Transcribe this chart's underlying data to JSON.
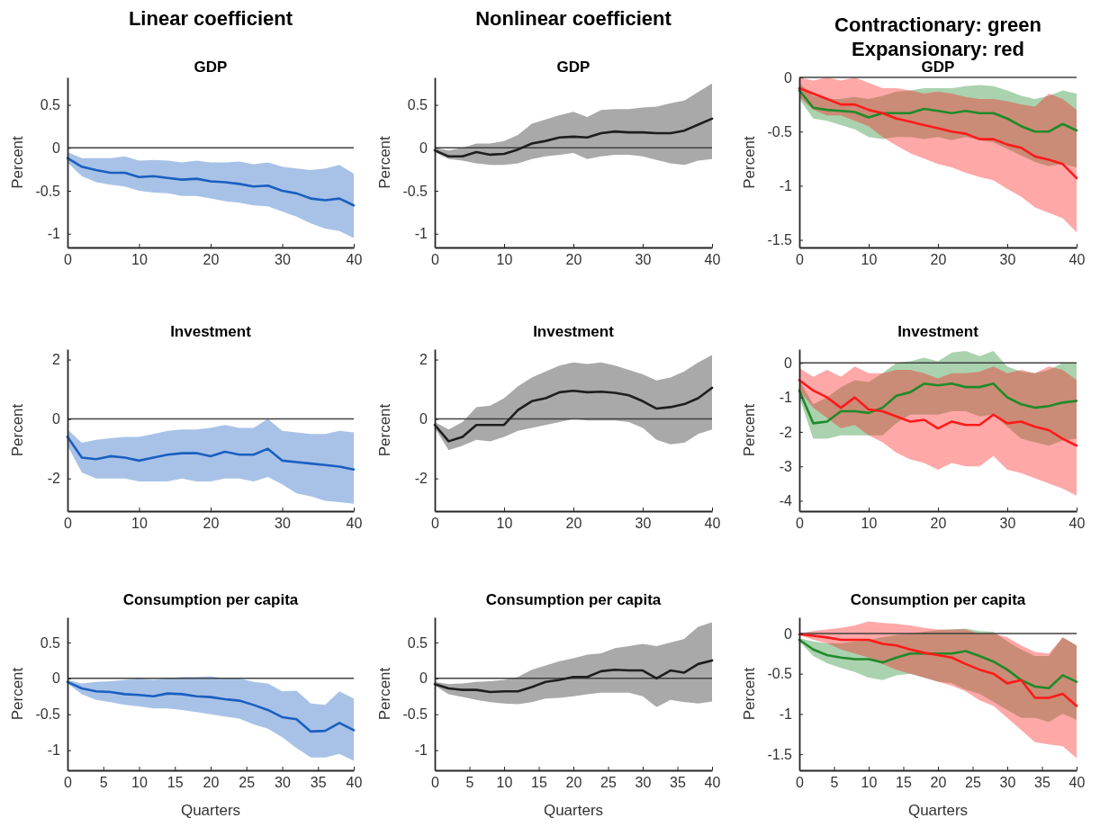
{
  "chart_data": [
    {
      "type": "line",
      "title": "Linear coefficient",
      "subtitle": "GDP",
      "ylabel": "Percent",
      "x": [
        0,
        2,
        4,
        6,
        8,
        10,
        12,
        14,
        16,
        18,
        20,
        22,
        24,
        26,
        28,
        30,
        32,
        34,
        36,
        38,
        40
      ],
      "xlim": [
        0,
        40
      ],
      "xticks": [
        0,
        10,
        20,
        30,
        40
      ],
      "ylim": [
        -1.16,
        0.82
      ],
      "yticks": [
        -1,
        -0.5,
        0,
        0.5
      ],
      "ref_lines": [
        {
          "axis": "y",
          "value": 0,
          "color": "#404040"
        }
      ],
      "series": [
        {
          "color": "#1a5fc0",
          "values": [
            -0.12,
            -0.22,
            -0.26,
            -0.29,
            -0.29,
            -0.34,
            -0.33,
            -0.35,
            -0.37,
            -0.36,
            -0.39,
            -0.4,
            -0.42,
            -0.45,
            -0.44,
            -0.5,
            -0.53,
            -0.59,
            -0.61,
            -0.59,
            -0.67
          ],
          "lower": [
            -0.17,
            -0.33,
            -0.4,
            -0.43,
            -0.45,
            -0.5,
            -0.52,
            -0.53,
            -0.56,
            -0.56,
            -0.59,
            -0.62,
            -0.64,
            -0.67,
            -0.68,
            -0.74,
            -0.8,
            -0.88,
            -0.94,
            -0.97,
            -1.05
          ],
          "upper": [
            -0.05,
            -0.12,
            -0.12,
            -0.12,
            -0.1,
            -0.15,
            -0.14,
            -0.15,
            -0.17,
            -0.15,
            -0.17,
            -0.17,
            -0.16,
            -0.19,
            -0.17,
            -0.22,
            -0.24,
            -0.26,
            -0.24,
            -0.2,
            -0.3
          ]
        }
      ]
    },
    {
      "type": "line",
      "title": "Nonlinear coefficient",
      "subtitle": "GDP",
      "ylabel": "Percent",
      "x": [
        0,
        2,
        4,
        6,
        8,
        10,
        12,
        14,
        16,
        18,
        20,
        22,
        24,
        26,
        28,
        30,
        32,
        34,
        36,
        38,
        40
      ],
      "xlim": [
        0,
        40
      ],
      "xticks": [
        0,
        10,
        20,
        30,
        40
      ],
      "ylim": [
        -1.16,
        0.82
      ],
      "yticks": [
        -1,
        -0.5,
        0,
        0.5
      ],
      "ref_lines": [
        {
          "axis": "y",
          "value": 0,
          "color": "#404040"
        }
      ],
      "series": [
        {
          "color": "#1e1e1e",
          "values": [
            -0.03,
            -0.1,
            -0.1,
            -0.05,
            -0.08,
            -0.07,
            -0.02,
            0.05,
            0.08,
            0.12,
            0.13,
            0.12,
            0.17,
            0.19,
            0.18,
            0.18,
            0.17,
            0.17,
            0.2,
            0.27,
            0.34
          ],
          "lower": [
            -0.05,
            -0.13,
            -0.15,
            -0.18,
            -0.2,
            -0.2,
            -0.18,
            -0.13,
            -0.1,
            -0.08,
            -0.06,
            -0.13,
            -0.1,
            -0.08,
            -0.08,
            -0.1,
            -0.14,
            -0.18,
            -0.2,
            -0.15,
            -0.13
          ],
          "upper": [
            0,
            -0.03,
            0,
            0.05,
            0.05,
            0.08,
            0.15,
            0.28,
            0.33,
            0.38,
            0.42,
            0.36,
            0.44,
            0.45,
            0.45,
            0.47,
            0.48,
            0.52,
            0.55,
            0.65,
            0.75
          ]
        }
      ]
    },
    {
      "type": "line",
      "title": "Contractionary: green\nExpansionary: red",
      "subtitle": "GDP",
      "ylabel": "Percent",
      "x": [
        0,
        2,
        4,
        6,
        8,
        10,
        12,
        14,
        16,
        18,
        20,
        22,
        24,
        26,
        28,
        30,
        32,
        34,
        36,
        38,
        40
      ],
      "xlim": [
        0,
        40
      ],
      "xticks": [
        0,
        10,
        20,
        30,
        40
      ],
      "ylim": [
        -1.57,
        0
      ],
      "yticks": [
        -1.5,
        -1,
        -0.5,
        0
      ],
      "ref_lines": [
        {
          "axis": "y",
          "value": 0,
          "color": "#404040"
        }
      ],
      "series": [
        {
          "color": "#1f8a2a",
          "values": [
            -0.12,
            -0.28,
            -0.3,
            -0.31,
            -0.32,
            -0.37,
            -0.33,
            -0.33,
            -0.33,
            -0.29,
            -0.31,
            -0.33,
            -0.31,
            -0.33,
            -0.33,
            -0.38,
            -0.45,
            -0.5,
            -0.5,
            -0.43,
            -0.49
          ],
          "lower": [
            -0.2,
            -0.38,
            -0.4,
            -0.44,
            -0.48,
            -0.55,
            -0.57,
            -0.55,
            -0.55,
            -0.57,
            -0.55,
            -0.58,
            -0.55,
            -0.58,
            -0.6,
            -0.66,
            -0.72,
            -0.78,
            -0.82,
            -0.8,
            -0.83
          ],
          "upper": [
            -0.05,
            -0.17,
            -0.2,
            -0.2,
            -0.18,
            -0.2,
            -0.17,
            -0.13,
            -0.12,
            -0.1,
            -0.1,
            -0.1,
            -0.08,
            -0.07,
            -0.08,
            -0.12,
            -0.17,
            -0.2,
            -0.17,
            -0.12,
            -0.15
          ]
        },
        {
          "color": "#ff1a1a",
          "values": [
            -0.1,
            -0.15,
            -0.2,
            -0.25,
            -0.25,
            -0.3,
            -0.33,
            -0.38,
            -0.41,
            -0.44,
            -0.47,
            -0.5,
            -0.52,
            -0.57,
            -0.57,
            -0.62,
            -0.65,
            -0.73,
            -0.76,
            -0.8,
            -0.93
          ],
          "lower": [
            -0.18,
            -0.3,
            -0.35,
            -0.35,
            -0.4,
            -0.45,
            -0.55,
            -0.63,
            -0.7,
            -0.75,
            -0.8,
            -0.83,
            -0.88,
            -0.92,
            -0.95,
            -1.03,
            -1.1,
            -1.2,
            -1.25,
            -1.3,
            -1.43
          ],
          "upper": [
            0,
            -0.03,
            0,
            -0.03,
            0,
            -0.05,
            -0.1,
            -0.1,
            -0.12,
            -0.15,
            -0.13,
            -0.15,
            -0.18,
            -0.2,
            -0.2,
            -0.22,
            -0.25,
            -0.27,
            -0.15,
            -0.2,
            -0.3
          ]
        }
      ]
    },
    {
      "type": "line",
      "title": "Investment",
      "ylabel": "Percent",
      "x": [
        0,
        2,
        4,
        6,
        8,
        10,
        12,
        14,
        16,
        18,
        20,
        22,
        24,
        26,
        28,
        30,
        32,
        34,
        36,
        38,
        40
      ],
      "xlim": [
        0,
        40
      ],
      "xticks": [
        0,
        10,
        20,
        30,
        40
      ],
      "ylim": [
        -3.1,
        2.35
      ],
      "yticks": [
        -2,
        0,
        2
      ],
      "ref_lines": [
        {
          "axis": "y",
          "value": 0,
          "color": "#404040"
        }
      ],
      "series": [
        {
          "color": "#1a5fc0",
          "values": [
            -0.6,
            -1.3,
            -1.35,
            -1.25,
            -1.3,
            -1.4,
            -1.3,
            -1.2,
            -1.15,
            -1.15,
            -1.25,
            -1.1,
            -1.2,
            -1.2,
            -1.0,
            -1.4,
            -1.45,
            -1.5,
            -1.55,
            -1.6,
            -1.7
          ],
          "lower": [
            -0.9,
            -1.8,
            -2,
            -2,
            -2,
            -2.1,
            -2.1,
            -2.1,
            -2,
            -2.1,
            -2.1,
            -2,
            -2,
            -2.1,
            -1.95,
            -2.2,
            -2.5,
            -2.6,
            -2.75,
            -2.8,
            -2.85
          ],
          "upper": [
            -0.35,
            -0.8,
            -0.7,
            -0.65,
            -0.6,
            -0.6,
            -0.5,
            -0.4,
            -0.35,
            -0.35,
            -0.3,
            -0.2,
            -0.3,
            -0.3,
            0,
            -0.4,
            -0.45,
            -0.5,
            -0.5,
            -0.4,
            -0.45
          ]
        }
      ]
    },
    {
      "type": "line",
      "title": "Investment",
      "ylabel": "Percent",
      "x": [
        0,
        2,
        4,
        6,
        8,
        10,
        12,
        14,
        16,
        18,
        20,
        22,
        24,
        26,
        28,
        30,
        32,
        34,
        36,
        38,
        40
      ],
      "xlim": [
        0,
        40
      ],
      "xticks": [
        0,
        10,
        20,
        30,
        40
      ],
      "ylim": [
        -3.1,
        2.35
      ],
      "yticks": [
        -2,
        0,
        2
      ],
      "ref_lines": [
        {
          "axis": "y",
          "value": 0,
          "color": "#404040"
        }
      ],
      "series": [
        {
          "color": "#1e1e1e",
          "values": [
            -0.2,
            -0.75,
            -0.6,
            -0.2,
            -0.2,
            -0.2,
            0.3,
            0.6,
            0.7,
            0.9,
            0.95,
            0.9,
            0.92,
            0.88,
            0.8,
            0.6,
            0.35,
            0.4,
            0.5,
            0.7,
            1.05
          ],
          "lower": [
            -0.3,
            -1.05,
            -0.9,
            -0.7,
            -0.75,
            -0.6,
            -0.4,
            -0.3,
            -0.2,
            -0.1,
            0,
            -0.05,
            -0.05,
            -0.05,
            -0.1,
            -0.3,
            -0.7,
            -0.85,
            -0.8,
            -0.5,
            -0.35
          ],
          "upper": [
            -0.1,
            -0.35,
            -0.1,
            0.4,
            0.45,
            0.7,
            1.1,
            1.4,
            1.6,
            1.8,
            1.9,
            1.85,
            1.9,
            1.8,
            1.65,
            1.5,
            1.3,
            1.4,
            1.6,
            1.9,
            2.15
          ]
        }
      ]
    },
    {
      "type": "line",
      "title": "Investment",
      "ylabel": "Percent",
      "x": [
        0,
        2,
        4,
        6,
        8,
        10,
        12,
        14,
        16,
        18,
        20,
        22,
        24,
        26,
        28,
        30,
        32,
        34,
        36,
        38,
        40
      ],
      "xlim": [
        0,
        40
      ],
      "xticks": [
        0,
        10,
        20,
        30,
        40
      ],
      "ylim": [
        -4.3,
        0.4
      ],
      "yticks": [
        -4,
        -3,
        -2,
        -1,
        0
      ],
      "ref_lines": [
        {
          "axis": "y",
          "value": 0,
          "color": "#404040"
        }
      ],
      "series": [
        {
          "color": "#1f8a2a",
          "values": [
            -0.8,
            -1.75,
            -1.7,
            -1.4,
            -1.4,
            -1.45,
            -1.3,
            -0.95,
            -0.85,
            -0.6,
            -0.65,
            -0.6,
            -0.7,
            -0.7,
            -0.6,
            -1.0,
            -1.2,
            -1.3,
            -1.25,
            -1.15,
            -1.1
          ],
          "lower": [
            -1.0,
            -2.2,
            -2.2,
            -2.1,
            -2.1,
            -2.1,
            -2.1,
            -1.75,
            -1.5,
            -1.5,
            -1.5,
            -1.4,
            -1.4,
            -1.55,
            -1.5,
            -1.85,
            -2.2,
            -2.3,
            -2.4,
            -2.25,
            -2.2
          ],
          "upper": [
            -0.5,
            -1.2,
            -1.0,
            -0.7,
            -0.5,
            -0.55,
            -0.3,
            0,
            0.05,
            0.15,
            0.05,
            0.3,
            0.35,
            0.2,
            0.35,
            -0.1,
            -0.25,
            -0.3,
            -0.2,
            0,
            0
          ]
        },
        {
          "color": "#ff1a1a",
          "values": [
            -0.5,
            -0.8,
            -1.0,
            -1.3,
            -1.0,
            -1.35,
            -1.4,
            -1.55,
            -1.7,
            -1.65,
            -1.9,
            -1.7,
            -1.8,
            -1.8,
            -1.5,
            -1.75,
            -1.7,
            -1.85,
            -1.95,
            -2.2,
            -2.4
          ],
          "lower": [
            -0.8,
            -1.3,
            -1.6,
            -1.9,
            -1.8,
            -2.1,
            -2.3,
            -2.6,
            -2.8,
            -2.9,
            -3.1,
            -2.9,
            -3.0,
            -3.0,
            -2.7,
            -3.1,
            -3.2,
            -3.35,
            -3.5,
            -3.65,
            -3.85
          ],
          "upper": [
            -0.15,
            -0.4,
            -0.2,
            -0.4,
            -0.1,
            -0.3,
            -0.3,
            -0.2,
            -0.2,
            -0.3,
            -0.45,
            -0.3,
            -0.3,
            -0.25,
            -0.1,
            -0.3,
            -0.2,
            -0.3,
            -0.1,
            -0.2,
            -0.5
          ]
        }
      ]
    },
    {
      "type": "line",
      "title": "Consumption per capita",
      "xlabel": "Quarters",
      "ylabel": "Percent",
      "x": [
        0,
        2,
        4,
        6,
        8,
        10,
        12,
        14,
        16,
        18,
        20,
        22,
        24,
        26,
        28,
        30,
        32,
        34,
        36,
        38,
        40
      ],
      "xlim": [
        0,
        40
      ],
      "xticks": [
        0,
        5,
        10,
        15,
        20,
        25,
        30,
        35,
        40
      ],
      "ylim": [
        -1.28,
        0.85
      ],
      "yticks": [
        -1,
        -0.5,
        0,
        0.5
      ],
      "ref_lines": [
        {
          "axis": "y",
          "value": 0,
          "color": "#404040"
        }
      ],
      "series": [
        {
          "color": "#1a5fc0",
          "values": [
            -0.05,
            -0.14,
            -0.18,
            -0.19,
            -0.22,
            -0.23,
            -0.25,
            -0.21,
            -0.22,
            -0.25,
            -0.26,
            -0.29,
            -0.31,
            -0.37,
            -0.44,
            -0.54,
            -0.57,
            -0.74,
            -0.73,
            -0.62,
            -0.72
          ],
          "lower": [
            -0.07,
            -0.22,
            -0.3,
            -0.33,
            -0.37,
            -0.39,
            -0.42,
            -0.42,
            -0.44,
            -0.47,
            -0.5,
            -0.53,
            -0.56,
            -0.64,
            -0.7,
            -0.82,
            -0.97,
            -1.1,
            -1.1,
            -1.05,
            -1.15
          ],
          "upper": [
            -0.02,
            -0.07,
            -0.05,
            -0.04,
            -0.02,
            0,
            -0.02,
            0,
            0.02,
            0.02,
            0.03,
            0,
            0,
            -0.05,
            -0.07,
            -0.18,
            -0.17,
            -0.35,
            -0.37,
            -0.18,
            -0.28
          ]
        }
      ]
    },
    {
      "type": "line",
      "title": "Consumption per capita",
      "xlabel": "Quarters",
      "ylabel": "Percent",
      "x": [
        0,
        2,
        4,
        6,
        8,
        10,
        12,
        14,
        16,
        18,
        20,
        22,
        24,
        26,
        28,
        30,
        32,
        34,
        36,
        38,
        40
      ],
      "xlim": [
        0,
        40
      ],
      "xticks": [
        0,
        5,
        10,
        15,
        20,
        25,
        30,
        35,
        40
      ],
      "ylim": [
        -1.28,
        0.85
      ],
      "yticks": [
        -1,
        -0.5,
        0,
        0.5
      ],
      "ref_lines": [
        {
          "axis": "y",
          "value": 0,
          "color": "#404040"
        }
      ],
      "series": [
        {
          "color": "#1e1e1e",
          "values": [
            -0.08,
            -0.14,
            -0.16,
            -0.16,
            -0.19,
            -0.18,
            -0.18,
            -0.12,
            -0.05,
            -0.02,
            0.02,
            0.02,
            0.1,
            0.12,
            0.11,
            0.11,
            0,
            0.11,
            0.08,
            0.2,
            0.25
          ],
          "lower": [
            -0.1,
            -0.22,
            -0.26,
            -0.3,
            -0.33,
            -0.35,
            -0.36,
            -0.33,
            -0.28,
            -0.27,
            -0.25,
            -0.22,
            -0.2,
            -0.2,
            -0.2,
            -0.25,
            -0.4,
            -0.3,
            -0.33,
            -0.35,
            -0.32
          ],
          "upper": [
            -0.05,
            -0.08,
            -0.07,
            -0.05,
            -0.04,
            -0.02,
            0.02,
            0.12,
            0.18,
            0.24,
            0.28,
            0.33,
            0.35,
            0.42,
            0.45,
            0.48,
            0.45,
            0.5,
            0.55,
            0.72,
            0.78
          ]
        }
      ]
    },
    {
      "type": "line",
      "title": "Consumption per capita",
      "xlabel": "Quarters",
      "ylabel": "Percent",
      "x": [
        0,
        2,
        4,
        6,
        8,
        10,
        12,
        14,
        16,
        18,
        20,
        22,
        24,
        26,
        28,
        30,
        32,
        34,
        36,
        38,
        40
      ],
      "xlim": [
        0,
        40
      ],
      "xticks": [
        0,
        5,
        10,
        15,
        20,
        25,
        30,
        35,
        40
      ],
      "ylim": [
        -1.7,
        0.2
      ],
      "yticks": [
        -1.5,
        -1,
        -0.5,
        0
      ],
      "ref_lines": [
        {
          "axis": "y",
          "value": 0,
          "color": "#404040"
        }
      ],
      "series": [
        {
          "color": "#1f8a2a",
          "values": [
            -0.08,
            -0.2,
            -0.27,
            -0.3,
            -0.32,
            -0.32,
            -0.36,
            -0.3,
            -0.25,
            -0.25,
            -0.25,
            -0.25,
            -0.22,
            -0.28,
            -0.35,
            -0.45,
            -0.58,
            -0.66,
            -0.68,
            -0.52,
            -0.6
          ],
          "lower": [
            -0.1,
            -0.28,
            -0.37,
            -0.43,
            -0.48,
            -0.55,
            -0.58,
            -0.52,
            -0.5,
            -0.55,
            -0.6,
            -0.62,
            -0.7,
            -0.75,
            -0.85,
            -0.95,
            -1.05,
            -1.05,
            -1.1,
            -1.0,
            -1.07
          ],
          "upper": [
            -0.06,
            -0.1,
            -0.12,
            -0.12,
            -0.1,
            -0.08,
            -0.05,
            -0.02,
            0,
            0.02,
            0.04,
            0.05,
            0.06,
            0.03,
            0.02,
            -0.1,
            -0.2,
            -0.28,
            -0.28,
            -0.05,
            -0.15
          ]
        },
        {
          "color": "#ff1a1a",
          "values": [
            -0.01,
            -0.03,
            -0.05,
            -0.08,
            -0.08,
            -0.08,
            -0.13,
            -0.15,
            -0.2,
            -0.24,
            -0.27,
            -0.3,
            -0.38,
            -0.45,
            -0.5,
            -0.62,
            -0.58,
            -0.8,
            -0.8,
            -0.75,
            -0.9
          ],
          "lower": [
            -0.02,
            -0.08,
            -0.12,
            -0.2,
            -0.25,
            -0.3,
            -0.38,
            -0.45,
            -0.5,
            -0.55,
            -0.6,
            -0.65,
            -0.72,
            -0.83,
            -0.9,
            -1.05,
            -1.2,
            -1.35,
            -1.38,
            -1.4,
            -1.55
          ],
          "upper": [
            0,
            0.03,
            0.05,
            0.07,
            0.1,
            0.15,
            0.13,
            0.12,
            0.1,
            0.07,
            0.05,
            0.05,
            0.05,
            0,
            0,
            -0.05,
            -0.15,
            -0.23,
            -0.25,
            -0.05,
            -0.15
          ]
        }
      ]
    }
  ]
}
